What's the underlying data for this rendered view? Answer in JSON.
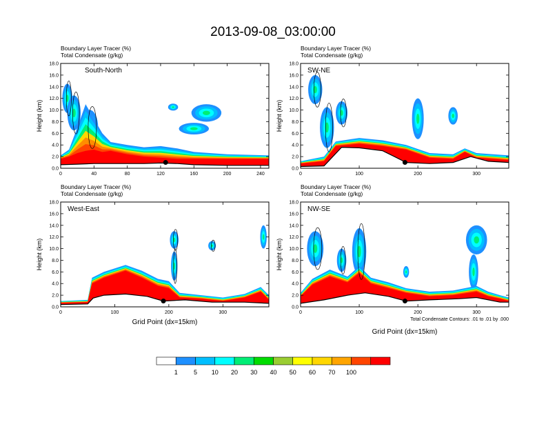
{
  "figure": {
    "title": "2013-09-08_03:00:00",
    "footnote": "Total Condensate Contours: .01 to .01 by .000"
  },
  "colorbar": {
    "labels": [
      "1",
      "5",
      "10",
      "20",
      "30",
      "40",
      "50",
      "60",
      "70",
      "100"
    ],
    "colors": [
      "#ffffff",
      "#1e90ff",
      "#00bfff",
      "#00ffff",
      "#00ee76",
      "#00dd00",
      "#9acd32",
      "#ffff00",
      "#ffd700",
      "#ffa500",
      "#ff4500",
      "#ff0000"
    ]
  },
  "chart_data": [
    {
      "type": "heatmap",
      "title": "South-North",
      "field_label": "Boundary Layer Tracer   (%)",
      "contour_label": "Total Condensate   (g/kg)",
      "ylabel": "Height (km)",
      "xlabel": "",
      "xlim": [
        0,
        250
      ],
      "ylim": [
        0,
        18
      ],
      "xticks": [
        "0",
        "40",
        "80",
        "120",
        "160",
        "200",
        "240"
      ],
      "xtick_values": [
        0,
        40,
        80,
        120,
        160,
        200,
        240
      ],
      "yticks": [
        "0.0",
        "2.0",
        "4.0",
        "6.0",
        "8.0",
        "10.0",
        "12.0",
        "14.0",
        "16.0",
        "18.0"
      ],
      "marker": {
        "x": 126,
        "y": 1.0
      },
      "terrain": [
        [
          0,
          0.6
        ],
        [
          20,
          0.7
        ],
        [
          40,
          0.8
        ],
        [
          60,
          0.8
        ],
        [
          80,
          0.8
        ],
        [
          100,
          0.8
        ],
        [
          120,
          0.9
        ],
        [
          140,
          0.8
        ],
        [
          160,
          0.6
        ],
        [
          200,
          0.5
        ],
        [
          250,
          0.5
        ]
      ],
      "tracer_top": [
        [
          0,
          2.2
        ],
        [
          10,
          3.2
        ],
        [
          20,
          7.0
        ],
        [
          30,
          11.0
        ],
        [
          40,
          8.5
        ],
        [
          50,
          6.0
        ],
        [
          60,
          4.5
        ],
        [
          80,
          4.0
        ],
        [
          100,
          3.6
        ],
        [
          120,
          3.8
        ],
        [
          140,
          3.4
        ],
        [
          160,
          2.8
        ],
        [
          200,
          2.4
        ],
        [
          250,
          2.2
        ]
      ],
      "tracer_red_top": [
        [
          0,
          1.6
        ],
        [
          20,
          2.0
        ],
        [
          40,
          2.6
        ],
        [
          60,
          3.0
        ],
        [
          80,
          3.2
        ],
        [
          100,
          2.8
        ],
        [
          120,
          3.0
        ],
        [
          140,
          2.4
        ],
        [
          160,
          2.0
        ],
        [
          200,
          1.8
        ],
        [
          250,
          1.6
        ]
      ],
      "blobs": [
        {
          "cx": 8,
          "cy": 12.0,
          "rx": 6,
          "ry": 2.5
        },
        {
          "cx": 16,
          "cy": 9.5,
          "rx": 8,
          "ry": 3
        },
        {
          "cx": 35,
          "cy": 7.0,
          "rx": 10,
          "ry": 3
        },
        {
          "cx": 175,
          "cy": 9.5,
          "rx": 18,
          "ry": 1.5
        },
        {
          "cx": 160,
          "cy": 6.8,
          "rx": 18,
          "ry": 1.0
        },
        {
          "cx": 135,
          "cy": 10.5,
          "rx": 6,
          "ry": 0.6
        }
      ]
    },
    {
      "type": "heatmap",
      "title": "SW-NE",
      "field_label": "Boundary Layer Tracer   (%)",
      "contour_label": "Total Condensate   (g/kg)",
      "ylabel": "Height (km)",
      "xlabel": "",
      "xlim": [
        0,
        355
      ],
      "ylim": [
        0,
        18
      ],
      "xticks": [
        "0",
        "100",
        "200",
        "300"
      ],
      "xtick_values": [
        0,
        100,
        200,
        300
      ],
      "yticks": [
        "0.0",
        "2.0",
        "4.0",
        "6.0",
        "8.0",
        "10.0",
        "12.0",
        "14.0",
        "16.0",
        "18.0"
      ],
      "marker": {
        "x": 178,
        "y": 1.0
      },
      "terrain": [
        [
          0,
          0.3
        ],
        [
          40,
          0.4
        ],
        [
          55,
          2.0
        ],
        [
          70,
          3.6
        ],
        [
          100,
          3.5
        ],
        [
          140,
          3.0
        ],
        [
          160,
          2.0
        ],
        [
          180,
          1.0
        ],
        [
          220,
          0.8
        ],
        [
          260,
          1.0
        ],
        [
          290,
          2.0
        ],
        [
          320,
          1.2
        ],
        [
          355,
          1.0
        ]
      ],
      "tracer_top": [
        [
          0,
          1.2
        ],
        [
          40,
          2.0
        ],
        [
          60,
          4.6
        ],
        [
          100,
          5.2
        ],
        [
          140,
          4.8
        ],
        [
          180,
          4.0
        ],
        [
          220,
          2.6
        ],
        [
          260,
          2.4
        ],
        [
          280,
          3.4
        ],
        [
          300,
          2.6
        ],
        [
          355,
          2.2
        ]
      ],
      "tracer_red_top": [
        [
          0,
          0.8
        ],
        [
          40,
          1.2
        ],
        [
          60,
          3.8
        ],
        [
          100,
          4.2
        ],
        [
          140,
          3.8
        ],
        [
          180,
          3.2
        ],
        [
          220,
          1.8
        ],
        [
          260,
          1.6
        ],
        [
          280,
          2.8
        ],
        [
          300,
          1.8
        ],
        [
          355,
          1.4
        ]
      ],
      "blobs": [
        {
          "cx": 25,
          "cy": 13.5,
          "rx": 12,
          "ry": 2.5
        },
        {
          "cx": 45,
          "cy": 7.0,
          "rx": 12,
          "ry": 3.5
        },
        {
          "cx": 70,
          "cy": 9.5,
          "rx": 10,
          "ry": 2
        },
        {
          "cx": 200,
          "cy": 8.5,
          "rx": 10,
          "ry": 3.5
        },
        {
          "cx": 260,
          "cy": 9.0,
          "rx": 8,
          "ry": 1.5
        }
      ]
    },
    {
      "type": "heatmap",
      "title": "West-East",
      "field_label": "Boundary Layer Tracer   (%)",
      "contour_label": "Total Condensate   (g/kg)",
      "ylabel": "Height (km)",
      "xlabel": "Grid Point (dx=15km)",
      "xlim": [
        0,
        385
      ],
      "ylim": [
        0,
        18
      ],
      "xticks": [
        "0",
        "100",
        "200",
        "300"
      ],
      "xtick_values": [
        0,
        100,
        200,
        300
      ],
      "yticks": [
        "0.0",
        "2.0",
        "4.0",
        "6.0",
        "8.0",
        "10.0",
        "12.0",
        "14.0",
        "16.0",
        "18.0"
      ],
      "marker": {
        "x": 190,
        "y": 1.0
      },
      "terrain": [
        [
          0,
          0.4
        ],
        [
          50,
          0.5
        ],
        [
          60,
          1.5
        ],
        [
          80,
          2.0
        ],
        [
          120,
          2.2
        ],
        [
          160,
          1.8
        ],
        [
          190,
          1.0
        ],
        [
          230,
          1.2
        ],
        [
          280,
          0.8
        ],
        [
          340,
          0.8
        ],
        [
          385,
          0.6
        ]
      ],
      "tracer_top": [
        [
          0,
          1.0
        ],
        [
          50,
          1.2
        ],
        [
          58,
          5.0
        ],
        [
          80,
          6.0
        ],
        [
          120,
          7.2
        ],
        [
          150,
          6.2
        ],
        [
          180,
          4.8
        ],
        [
          200,
          4.4
        ],
        [
          220,
          2.4
        ],
        [
          260,
          2.0
        ],
        [
          300,
          1.6
        ],
        [
          340,
          2.2
        ],
        [
          370,
          3.4
        ],
        [
          385,
          2.0
        ]
      ],
      "tracer_red_top": [
        [
          0,
          0.7
        ],
        [
          50,
          0.8
        ],
        [
          60,
          4.0
        ],
        [
          80,
          5.0
        ],
        [
          120,
          6.2
        ],
        [
          150,
          5.0
        ],
        [
          180,
          3.6
        ],
        [
          200,
          3.2
        ],
        [
          220,
          1.6
        ],
        [
          260,
          1.4
        ],
        [
          300,
          1.0
        ],
        [
          340,
          1.6
        ],
        [
          370,
          2.6
        ],
        [
          385,
          1.2
        ]
      ],
      "blobs": [
        {
          "cx": 210,
          "cy": 11.5,
          "rx": 8,
          "ry": 1.5
        },
        {
          "cx": 210,
          "cy": 7.0,
          "rx": 6,
          "ry": 2.5
        },
        {
          "cx": 280,
          "cy": 10.5,
          "rx": 7,
          "ry": 0.8
        },
        {
          "cx": 375,
          "cy": 12.0,
          "rx": 6,
          "ry": 2
        }
      ]
    },
    {
      "type": "heatmap",
      "title": "NW-SE",
      "field_label": "Boundary Layer Tracer   (%)",
      "contour_label": "Total Condensate   (g/kg)",
      "ylabel": "Height (km)",
      "xlabel": "Grid Point (dx=15km)",
      "xlim": [
        0,
        355
      ],
      "ylim": [
        0,
        18
      ],
      "xticks": [
        "0",
        "100",
        "200",
        "300"
      ],
      "xtick_values": [
        0,
        100,
        200,
        300
      ],
      "yticks": [
        "0.0",
        "2.0",
        "4.0",
        "6.0",
        "8.0",
        "10.0",
        "12.0",
        "14.0",
        "16.0",
        "18.0"
      ],
      "marker": {
        "x": 178,
        "y": 1.0
      },
      "terrain": [
        [
          0,
          0.6
        ],
        [
          40,
          1.2
        ],
        [
          80,
          2.0
        ],
        [
          110,
          2.4
        ],
        [
          150,
          1.8
        ],
        [
          180,
          1.0
        ],
        [
          220,
          1.2
        ],
        [
          270,
          1.4
        ],
        [
          300,
          1.6
        ],
        [
          340,
          0.8
        ],
        [
          355,
          0.8
        ]
      ],
      "tracer_top": [
        [
          0,
          2.4
        ],
        [
          20,
          4.8
        ],
        [
          50,
          6.4
        ],
        [
          80,
          5.2
        ],
        [
          100,
          7.0
        ],
        [
          120,
          5.0
        ],
        [
          150,
          4.2
        ],
        [
          180,
          3.2
        ],
        [
          220,
          2.6
        ],
        [
          260,
          2.8
        ],
        [
          300,
          3.6
        ],
        [
          320,
          2.6
        ],
        [
          340,
          2.0
        ],
        [
          355,
          1.6
        ]
      ],
      "tracer_red_top": [
        [
          0,
          1.8
        ],
        [
          20,
          3.8
        ],
        [
          50,
          5.2
        ],
        [
          80,
          4.2
        ],
        [
          100,
          5.8
        ],
        [
          120,
          4.0
        ],
        [
          150,
          3.2
        ],
        [
          180,
          2.4
        ],
        [
          220,
          1.8
        ],
        [
          260,
          2.0
        ],
        [
          300,
          2.6
        ],
        [
          320,
          1.8
        ],
        [
          340,
          1.4
        ],
        [
          355,
          1.0
        ]
      ],
      "blobs": [
        {
          "cx": 25,
          "cy": 10.0,
          "rx": 14,
          "ry": 3
        },
        {
          "cx": 100,
          "cy": 9.5,
          "rx": 12,
          "ry": 4
        },
        {
          "cx": 70,
          "cy": 8.0,
          "rx": 8,
          "ry": 2
        },
        {
          "cx": 300,
          "cy": 11.5,
          "rx": 18,
          "ry": 2.5
        },
        {
          "cx": 295,
          "cy": 6.0,
          "rx": 8,
          "ry": 3
        },
        {
          "cx": 180,
          "cy": 6.0,
          "rx": 5,
          "ry": 1
        }
      ]
    }
  ]
}
